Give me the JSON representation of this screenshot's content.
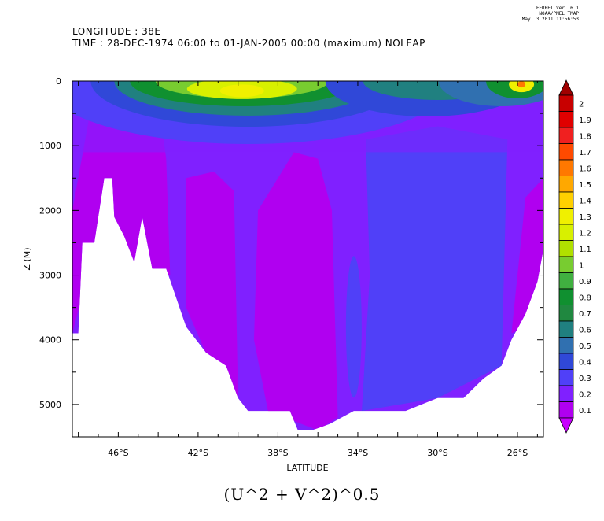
{
  "header": {
    "longitude_line": "LONGITUDE : 38E",
    "time_line": "TIME : 28-DEC-1974 06:00 to 01-JAN-2005 00:00 (maximum) NOLEAP"
  },
  "stamp": [
    "FERRET Ver. 6.1",
    "NOAA/PMEL TMAP",
    "May  3 2011 11:56:53"
  ],
  "formula": "(U^2 + V^2)^0.5",
  "chart_data": {
    "type": "heatmap",
    "xlabel": "LATITUDE",
    "ylabel": "Z (M)",
    "x_range": [
      -48.3,
      -24.7
    ],
    "y_range": [
      0,
      5500
    ],
    "y_inverted": true,
    "x_tick_labels": [
      "46°S",
      "42°S",
      "38°S",
      "34°S",
      "30°S",
      "26°S"
    ],
    "x_tick_values": [
      -46,
      -42,
      -38,
      -34,
      -30,
      -26
    ],
    "y_tick_labels": [
      "0",
      "1000",
      "2000",
      "3000",
      "4000",
      "5000"
    ],
    "y_tick_values": [
      0,
      1000,
      2000,
      3000,
      4000,
      5000
    ],
    "colorbar": {
      "labels": [
        "2",
        "1.9",
        "1.8",
        "1.7",
        "1.6",
        "1.5",
        "1.4",
        "1.3",
        "1.2",
        "1.1",
        "1",
        "0.9",
        "0.8",
        "0.7",
        "0.6",
        "0.5",
        "0.4",
        "0.3",
        "0.2",
        "0.1"
      ],
      "colors": [
        "#c80000",
        "#e00000",
        "#f02020",
        "#ff4a00",
        "#ff7800",
        "#ffa800",
        "#ffd000",
        "#f0f000",
        "#d8f000",
        "#b0e000",
        "#78cc30",
        "#40b040",
        "#109030",
        "#208840",
        "#208080",
        "#3070b0",
        "#3048d8",
        "#5040f8",
        "#8020ff",
        "#b000f0"
      ],
      "over_color": "#a00000",
      "under_color": "#c800ff"
    },
    "bottom_profile": [
      {
        "lat": -48.3,
        "depth": 3900
      },
      {
        "lat": -48.0,
        "depth": 3900
      },
      {
        "lat": -47.8,
        "depth": 2500
      },
      {
        "lat": -47.2,
        "depth": 2500
      },
      {
        "lat": -46.7,
        "depth": 1500
      },
      {
        "lat": -46.3,
        "depth": 1500
      },
      {
        "lat": -46.2,
        "depth": 2100
      },
      {
        "lat": -45.7,
        "depth": 2400
      },
      {
        "lat": -45.2,
        "depth": 2800
      },
      {
        "lat": -44.8,
        "depth": 2100
      },
      {
        "lat": -44.3,
        "depth": 2900
      },
      {
        "lat": -43.6,
        "depth": 2900
      },
      {
        "lat": -42.6,
        "depth": 3800
      },
      {
        "lat": -41.6,
        "depth": 4200
      },
      {
        "lat": -40.6,
        "depth": 4400
      },
      {
        "lat": -40.0,
        "depth": 4900
      },
      {
        "lat": -39.5,
        "depth": 5100
      },
      {
        "lat": -38.7,
        "depth": 5100
      },
      {
        "lat": -38.1,
        "depth": 5100
      },
      {
        "lat": -37.4,
        "depth": 5100
      },
      {
        "lat": -37.0,
        "depth": 5400
      },
      {
        "lat": -36.3,
        "depth": 5400
      },
      {
        "lat": -35.4,
        "depth": 5300
      },
      {
        "lat": -34.2,
        "depth": 5100
      },
      {
        "lat": -31.6,
        "depth": 5100
      },
      {
        "lat": -30.0,
        "depth": 4900
      },
      {
        "lat": -28.7,
        "depth": 4900
      },
      {
        "lat": -27.7,
        "depth": 4600
      },
      {
        "lat": -26.8,
        "depth": 4400
      },
      {
        "lat": -26.3,
        "depth": 4000
      },
      {
        "lat": -25.6,
        "depth": 3600
      },
      {
        "lat": -25.0,
        "depth": 3100
      },
      {
        "lat": -24.7,
        "depth": 2600
      }
    ]
  }
}
